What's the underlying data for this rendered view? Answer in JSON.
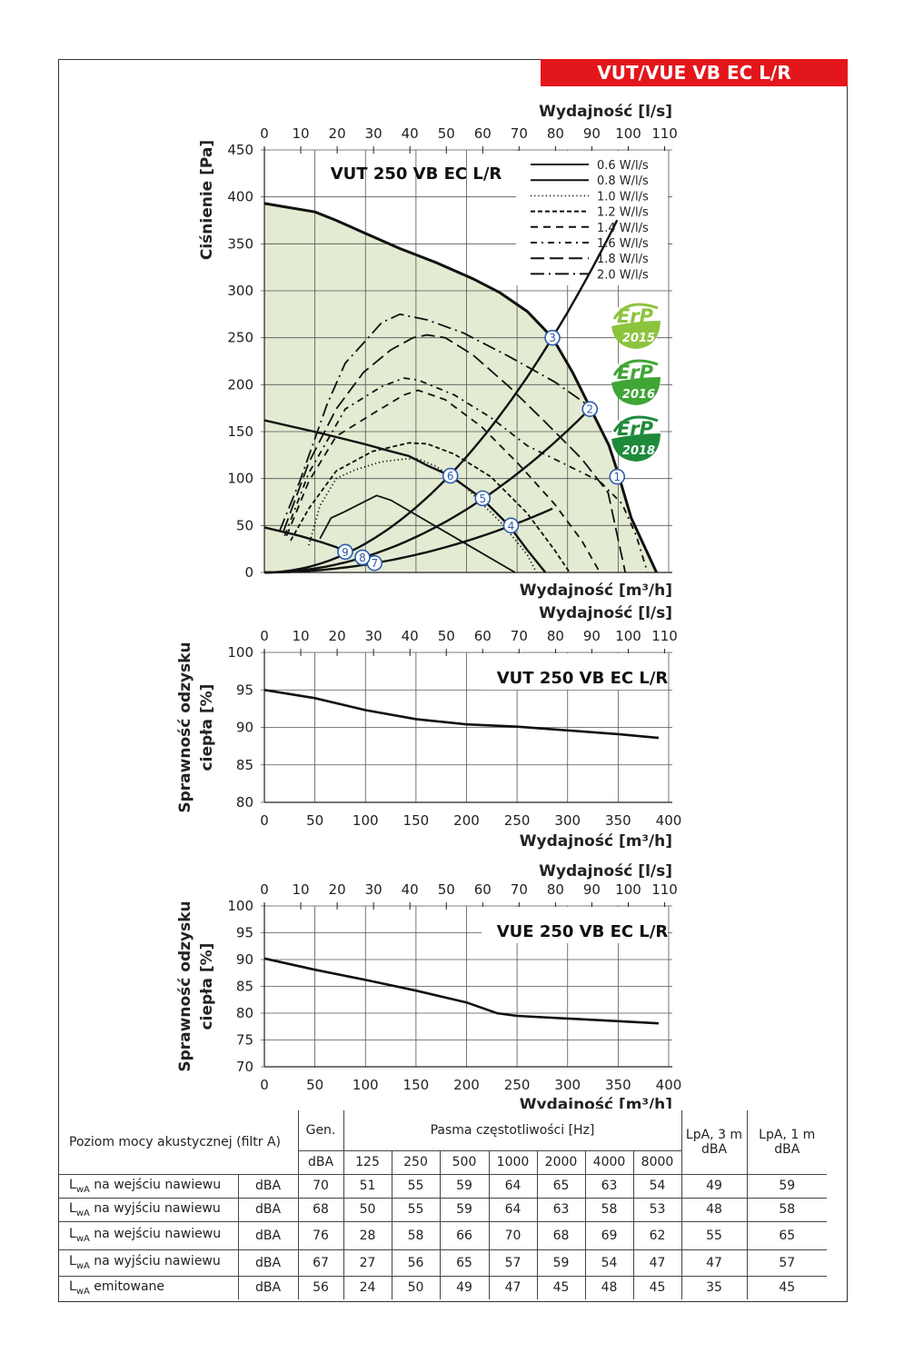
{
  "header": {
    "title": "VUT/VUE VB EC L/R"
  },
  "colors": {
    "header_bg": "#e3161b",
    "area_fill": "#e3ebd2",
    "marker": "#2a5cad",
    "erp_2015": "#8cc43c",
    "erp_2016": "#3fa535",
    "erp_2018": "#1e8a3a"
  },
  "chart_data": [
    {
      "type": "line",
      "title": "VUT 250 VB EC L/R",
      "xlabel": "Wydajność [m³/h]",
      "x2label": "Wydajność [l/s]",
      "ylabel": "Ciśnienie [Pa]",
      "xlim": [
        0,
        400
      ],
      "x2_ticks": [
        0,
        10,
        20,
        30,
        40,
        50,
        60,
        70,
        80,
        90,
        100,
        110
      ],
      "ylim": [
        0,
        450
      ],
      "y_ticks": [
        0,
        50,
        100,
        150,
        200,
        250,
        300,
        350,
        400,
        450
      ],
      "grid": true,
      "legend_position": "top-right",
      "max_curve": [
        [
          0,
          393
        ],
        [
          50,
          384
        ],
        [
          71,
          375
        ],
        [
          98,
          362
        ],
        [
          134,
          345
        ],
        [
          170,
          330
        ],
        [
          206,
          313
        ],
        [
          233,
          298
        ],
        [
          260,
          278
        ],
        [
          285,
          250
        ],
        [
          305,
          213
        ],
        [
          323,
          174
        ],
        [
          341,
          135
        ],
        [
          350,
          105
        ],
        [
          363,
          58
        ],
        [
          388,
          0
        ]
      ],
      "series": [
        {
          "name": "0.6 W/l/s",
          "style": "solid",
          "points": [
            [
              55,
              36
            ],
            [
              66,
              58
            ],
            [
              80,
              65
            ],
            [
              111,
              82
            ],
            [
              125,
              77
            ],
            [
              248,
              0
            ]
          ]
        },
        {
          "name": "0.8 W/l/s",
          "style": "solid",
          "points": [
            [
              0,
              162
            ],
            [
              53,
              149
            ],
            [
              98,
              137
            ],
            [
              125,
              129
            ],
            [
              143,
              124
            ],
            [
              161,
              114
            ],
            [
              184,
              103
            ],
            [
              215,
              79
            ],
            [
              242,
              50
            ],
            [
              260,
              24
            ],
            [
              278,
              0
            ]
          ]
        },
        {
          "name": "1.0 W/l/s",
          "style": "dotted",
          "points": [
            [
              44,
              29
            ],
            [
              55,
              71
            ],
            [
              71,
              100
            ],
            [
              89,
              109
            ],
            [
              116,
              118
            ],
            [
              140,
              121
            ],
            [
              152,
              121
            ],
            [
              170,
              113
            ],
            [
              200,
              90
            ],
            [
              236,
              51
            ],
            [
              260,
              19
            ],
            [
              269,
              0
            ]
          ]
        },
        {
          "name": "1.2 W/l/s",
          "style": "short-dash",
          "points": [
            [
              26,
              34
            ],
            [
              44,
              68
            ],
            [
              71,
              108
            ],
            [
              107,
              129
            ],
            [
              143,
              138
            ],
            [
              161,
              137
            ],
            [
              188,
              126
            ],
            [
              224,
              102
            ],
            [
              260,
              63
            ],
            [
              287,
              24
            ],
            [
              302,
              0
            ]
          ]
        },
        {
          "name": "1.4 W/l/s",
          "style": "dash",
          "points": [
            [
              22,
              39
            ],
            [
              44,
              97
            ],
            [
              71,
              145
            ],
            [
              107,
              169
            ],
            [
              138,
              189
            ],
            [
              152,
              194
            ],
            [
              179,
              184
            ],
            [
              215,
              155
            ],
            [
              251,
              116
            ],
            [
              287,
              73
            ],
            [
              314,
              34
            ],
            [
              332,
              0
            ]
          ]
        },
        {
          "name": "1.6 W/l/s",
          "style": "dash-dot",
          "points": [
            [
              20,
              39
            ],
            [
              44,
              106
            ],
            [
              80,
              174
            ],
            [
              116,
              198
            ],
            [
              138,
              207
            ],
            [
              152,
              205
            ],
            [
              188,
              189
            ],
            [
              224,
              165
            ],
            [
              260,
              135
            ],
            [
              296,
              116
            ],
            [
              332,
              97
            ],
            [
              354,
              73
            ],
            [
              368,
              39
            ],
            [
              379,
              0
            ]
          ]
        },
        {
          "name": "1.8 W/l/s",
          "style": "long-dash",
          "points": [
            [
              19,
              44
            ],
            [
              44,
              117
            ],
            [
              71,
              174
            ],
            [
              98,
              213
            ],
            [
              125,
              237
            ],
            [
              147,
              250
            ],
            [
              161,
              253
            ],
            [
              179,
              250
            ],
            [
              206,
              232
            ],
            [
              242,
              198
            ],
            [
              278,
              160
            ],
            [
              314,
              121
            ],
            [
              340,
              85
            ],
            [
              357,
              0
            ]
          ]
        },
        {
          "name": "2.0 W/l/s",
          "style": "long-dash-dot",
          "points": [
            [
              15,
              44
            ],
            [
              35,
              97
            ],
            [
              62,
              179
            ],
            [
              80,
              223
            ],
            [
              102,
              249
            ],
            [
              116,
              266
            ],
            [
              134,
              275
            ],
            [
              161,
              269
            ],
            [
              197,
              255
            ],
            [
              242,
              230
            ],
            [
              287,
              203
            ],
            [
              323,
              176
            ]
          ]
        }
      ],
      "low_curve": [
        [
          0,
          48
        ],
        [
          35,
          39
        ],
        [
          57,
          32
        ],
        [
          71,
          27
        ],
        [
          80,
          22
        ]
      ],
      "system_curves": [
        0.00308,
        0.00168,
        0.000837
      ],
      "operating_points": [
        {
          "label": "1",
          "x": 349,
          "y": 102
        },
        {
          "label": "2",
          "x": 322,
          "y": 174
        },
        {
          "label": "3",
          "x": 285,
          "y": 250
        },
        {
          "label": "4",
          "x": 244,
          "y": 50
        },
        {
          "label": "5",
          "x": 216,
          "y": 79
        },
        {
          "label": "6",
          "x": 184,
          "y": 103
        },
        {
          "label": "7",
          "x": 109,
          "y": 10
        },
        {
          "label": "8",
          "x": 97,
          "y": 16
        },
        {
          "label": "9",
          "x": 80,
          "y": 22
        }
      ],
      "badges": [
        {
          "top": "ErP",
          "year": "2015"
        },
        {
          "top": "ErP",
          "year": "2016"
        },
        {
          "top": "ErP",
          "year": "2018"
        }
      ]
    },
    {
      "type": "line",
      "title": "VUT 250 VB EC L/R",
      "xlabel": "Wydajność [m³/h]",
      "x2label": "Wydajność [l/s]",
      "ylabel_lines": [
        "Sprawność odzysku",
        "ciepła [%]"
      ],
      "xlim": [
        0,
        400
      ],
      "x_ticks": [
        0,
        50,
        100,
        150,
        200,
        250,
        300,
        350,
        400
      ],
      "x2_ticks": [
        0,
        10,
        20,
        30,
        40,
        50,
        60,
        70,
        80,
        90,
        100,
        110
      ],
      "ylim": [
        80,
        100
      ],
      "y_ticks": [
        80,
        85,
        90,
        95,
        100
      ],
      "grid": true,
      "points": [
        [
          0,
          95
        ],
        [
          50,
          93.9
        ],
        [
          100,
          92.3
        ],
        [
          150,
          91.1
        ],
        [
          200,
          90.4
        ],
        [
          250,
          90.1
        ],
        [
          300,
          89.6
        ],
        [
          350,
          89.1
        ],
        [
          390,
          88.6
        ]
      ]
    },
    {
      "type": "line",
      "title": "VUE 250 VB EC L/R",
      "xlabel": "Wydajność [m³/h]",
      "x2label": "Wydajność [l/s]",
      "ylabel_lines": [
        "Sprawność odzysku",
        "ciepła [%]"
      ],
      "xlim": [
        0,
        400
      ],
      "x_ticks": [
        0,
        50,
        100,
        150,
        200,
        250,
        300,
        350,
        400
      ],
      "x2_ticks": [
        0,
        10,
        20,
        30,
        40,
        50,
        60,
        70,
        80,
        90,
        100,
        110
      ],
      "ylim": [
        70,
        100
      ],
      "y_ticks": [
        70,
        75,
        80,
        85,
        90,
        95,
        100
      ],
      "grid": true,
      "points": [
        [
          0,
          90.2
        ],
        [
          50,
          88.1
        ],
        [
          100,
          86.2
        ],
        [
          150,
          84.2
        ],
        [
          200,
          82
        ],
        [
          230,
          80
        ],
        [
          250,
          79.5
        ],
        [
          300,
          79
        ],
        [
          350,
          78.5
        ],
        [
          390,
          78.1
        ]
      ]
    }
  ],
  "noise_table": {
    "title": "Poziom mocy akustycznej (filtr A)",
    "gen_header": "Gen.",
    "bands_header": "Pasma częstotliwości [Hz]",
    "lpa3_header": "LpA, 3 m",
    "lpa1_header": "LpA, 1 m",
    "unit": "dBA",
    "bands": [
      "125",
      "250",
      "500",
      "1000",
      "2000",
      "4000",
      "8000"
    ],
    "rows": [
      {
        "sym": "L",
        "sub": "wA",
        "label": "na wejściu nawiewu",
        "unit": "dBA",
        "values": [
          "70",
          "51",
          "55",
          "59",
          "64",
          "65",
          "63",
          "54",
          "49",
          "59"
        ]
      },
      {
        "sym": "L",
        "sub": "wA",
        "label": "na wyjściu nawiewu",
        "unit": "dBA",
        "values": [
          "68",
          "50",
          "55",
          "59",
          "64",
          "63",
          "58",
          "53",
          "48",
          "58"
        ]
      },
      {
        "sym": "L",
        "sub": "wA",
        "label": "na wejściu nawiewu",
        "unit": "dBA",
        "values": [
          "76",
          "28",
          "58",
          "66",
          "70",
          "68",
          "69",
          "62",
          "55",
          "65"
        ]
      },
      {
        "sym": "L",
        "sub": "wA",
        "label": "na wyjściu nawiewu",
        "unit": "dBA",
        "values": [
          "67",
          "27",
          "56",
          "65",
          "57",
          "59",
          "54",
          "47",
          "47",
          "57"
        ]
      },
      {
        "sym": "L",
        "sub": "wA",
        "label": "emitowane",
        "unit": "dBA",
        "values": [
          "56",
          "24",
          "50",
          "49",
          "47",
          "45",
          "48",
          "45",
          "35",
          "45"
        ]
      }
    ]
  }
}
